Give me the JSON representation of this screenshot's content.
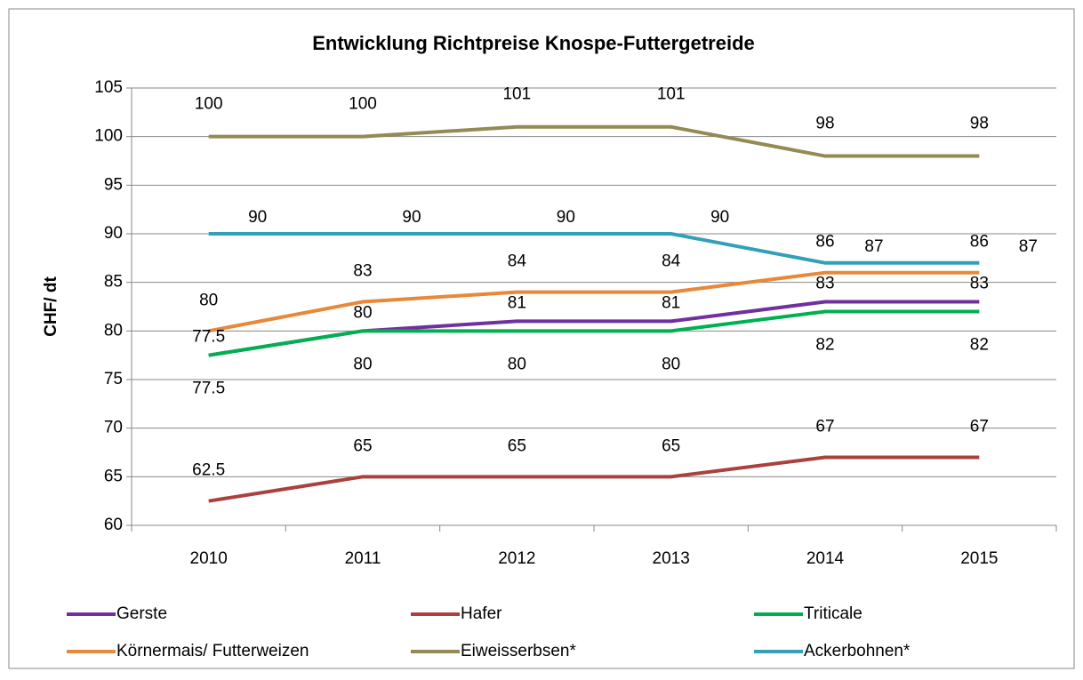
{
  "chart_data": {
    "type": "line",
    "title": "Entwicklung Richtpreise Knospe-Futtergetreide",
    "y_label": "CHF/ dt",
    "categories": [
      "2010",
      "2011",
      "2012",
      "2013",
      "2014",
      "2015"
    ],
    "series": [
      {
        "name": "Gerste",
        "color": "#7030a0",
        "values": [
          77.5,
          80,
          81,
          81,
          83,
          83
        ]
      },
      {
        "name": "Hafer",
        "color": "#a9413d",
        "values": [
          62.5,
          65,
          65,
          65,
          67,
          67
        ]
      },
      {
        "name": "Triticale",
        "color": "#00b050",
        "values": [
          77.5,
          80,
          80,
          80,
          82,
          82
        ]
      },
      {
        "name": "Körnermais/ Futterweizen",
        "color": "#e8883a",
        "values": [
          80,
          83,
          84,
          84,
          86,
          86
        ]
      },
      {
        "name": "Eiweisserbsen*",
        "color": "#948a54",
        "values": [
          100,
          100,
          101,
          101,
          98,
          98
        ]
      },
      {
        "name": "Ackerbohnen*",
        "color": "#31a0b8",
        "values": [
          90,
          90,
          90,
          90,
          87,
          87
        ]
      }
    ],
    "ylim": [
      60,
      105
    ],
    "yticks": [
      60,
      65,
      70,
      75,
      80,
      85,
      90,
      95,
      100,
      105
    ],
    "grid": true,
    "legend": "bottom"
  }
}
